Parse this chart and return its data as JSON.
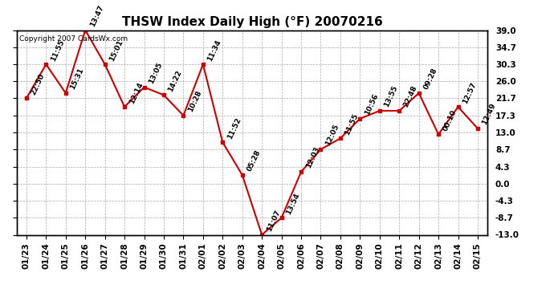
{
  "title": "THSW Index Daily High (°F) 20070216",
  "copyright": "Copyright 2007 CardsWx.com",
  "x_labels": [
    "01/23",
    "01/24",
    "01/25",
    "01/26",
    "01/27",
    "01/28",
    "01/29",
    "01/30",
    "01/31",
    "02/01",
    "02/02",
    "02/03",
    "02/04",
    "02/05",
    "02/06",
    "02/07",
    "02/08",
    "02/09",
    "02/10",
    "02/11",
    "02/12",
    "02/13",
    "02/14",
    "02/15"
  ],
  "y_values": [
    21.7,
    30.3,
    23.0,
    39.0,
    30.3,
    19.5,
    24.5,
    22.5,
    17.3,
    30.3,
    10.5,
    2.2,
    -13.0,
    -8.7,
    3.0,
    8.7,
    11.5,
    16.5,
    18.5,
    18.5,
    23.0,
    12.5,
    19.5,
    14.0
  ],
  "point_labels": [
    "22:50",
    "11:55",
    "15:31",
    "13:47",
    "15:01",
    "12:14",
    "13:05",
    "14:22",
    "10:28",
    "11:34",
    "11:52",
    "05:28",
    "11:07",
    "13:54",
    "12:03",
    "12:05",
    "11:55",
    "10:56",
    "13:55",
    "22:48",
    "09:28",
    "00:10",
    "12:57",
    "12:49"
  ],
  "y_ticks": [
    -13.0,
    -8.7,
    -4.3,
    0.0,
    4.3,
    8.7,
    13.0,
    17.3,
    21.7,
    26.0,
    30.3,
    34.7,
    39.0
  ],
  "ylim_min": -13.0,
  "ylim_max": 39.0,
  "line_color": "#cc0000",
  "marker_color": "#cc0000",
  "bg_color": "#ffffff",
  "grid_color": "#aaaaaa",
  "title_fontsize": 11,
  "label_fontsize": 6.5,
  "tick_fontsize": 7.5,
  "copyright_fontsize": 6.5
}
